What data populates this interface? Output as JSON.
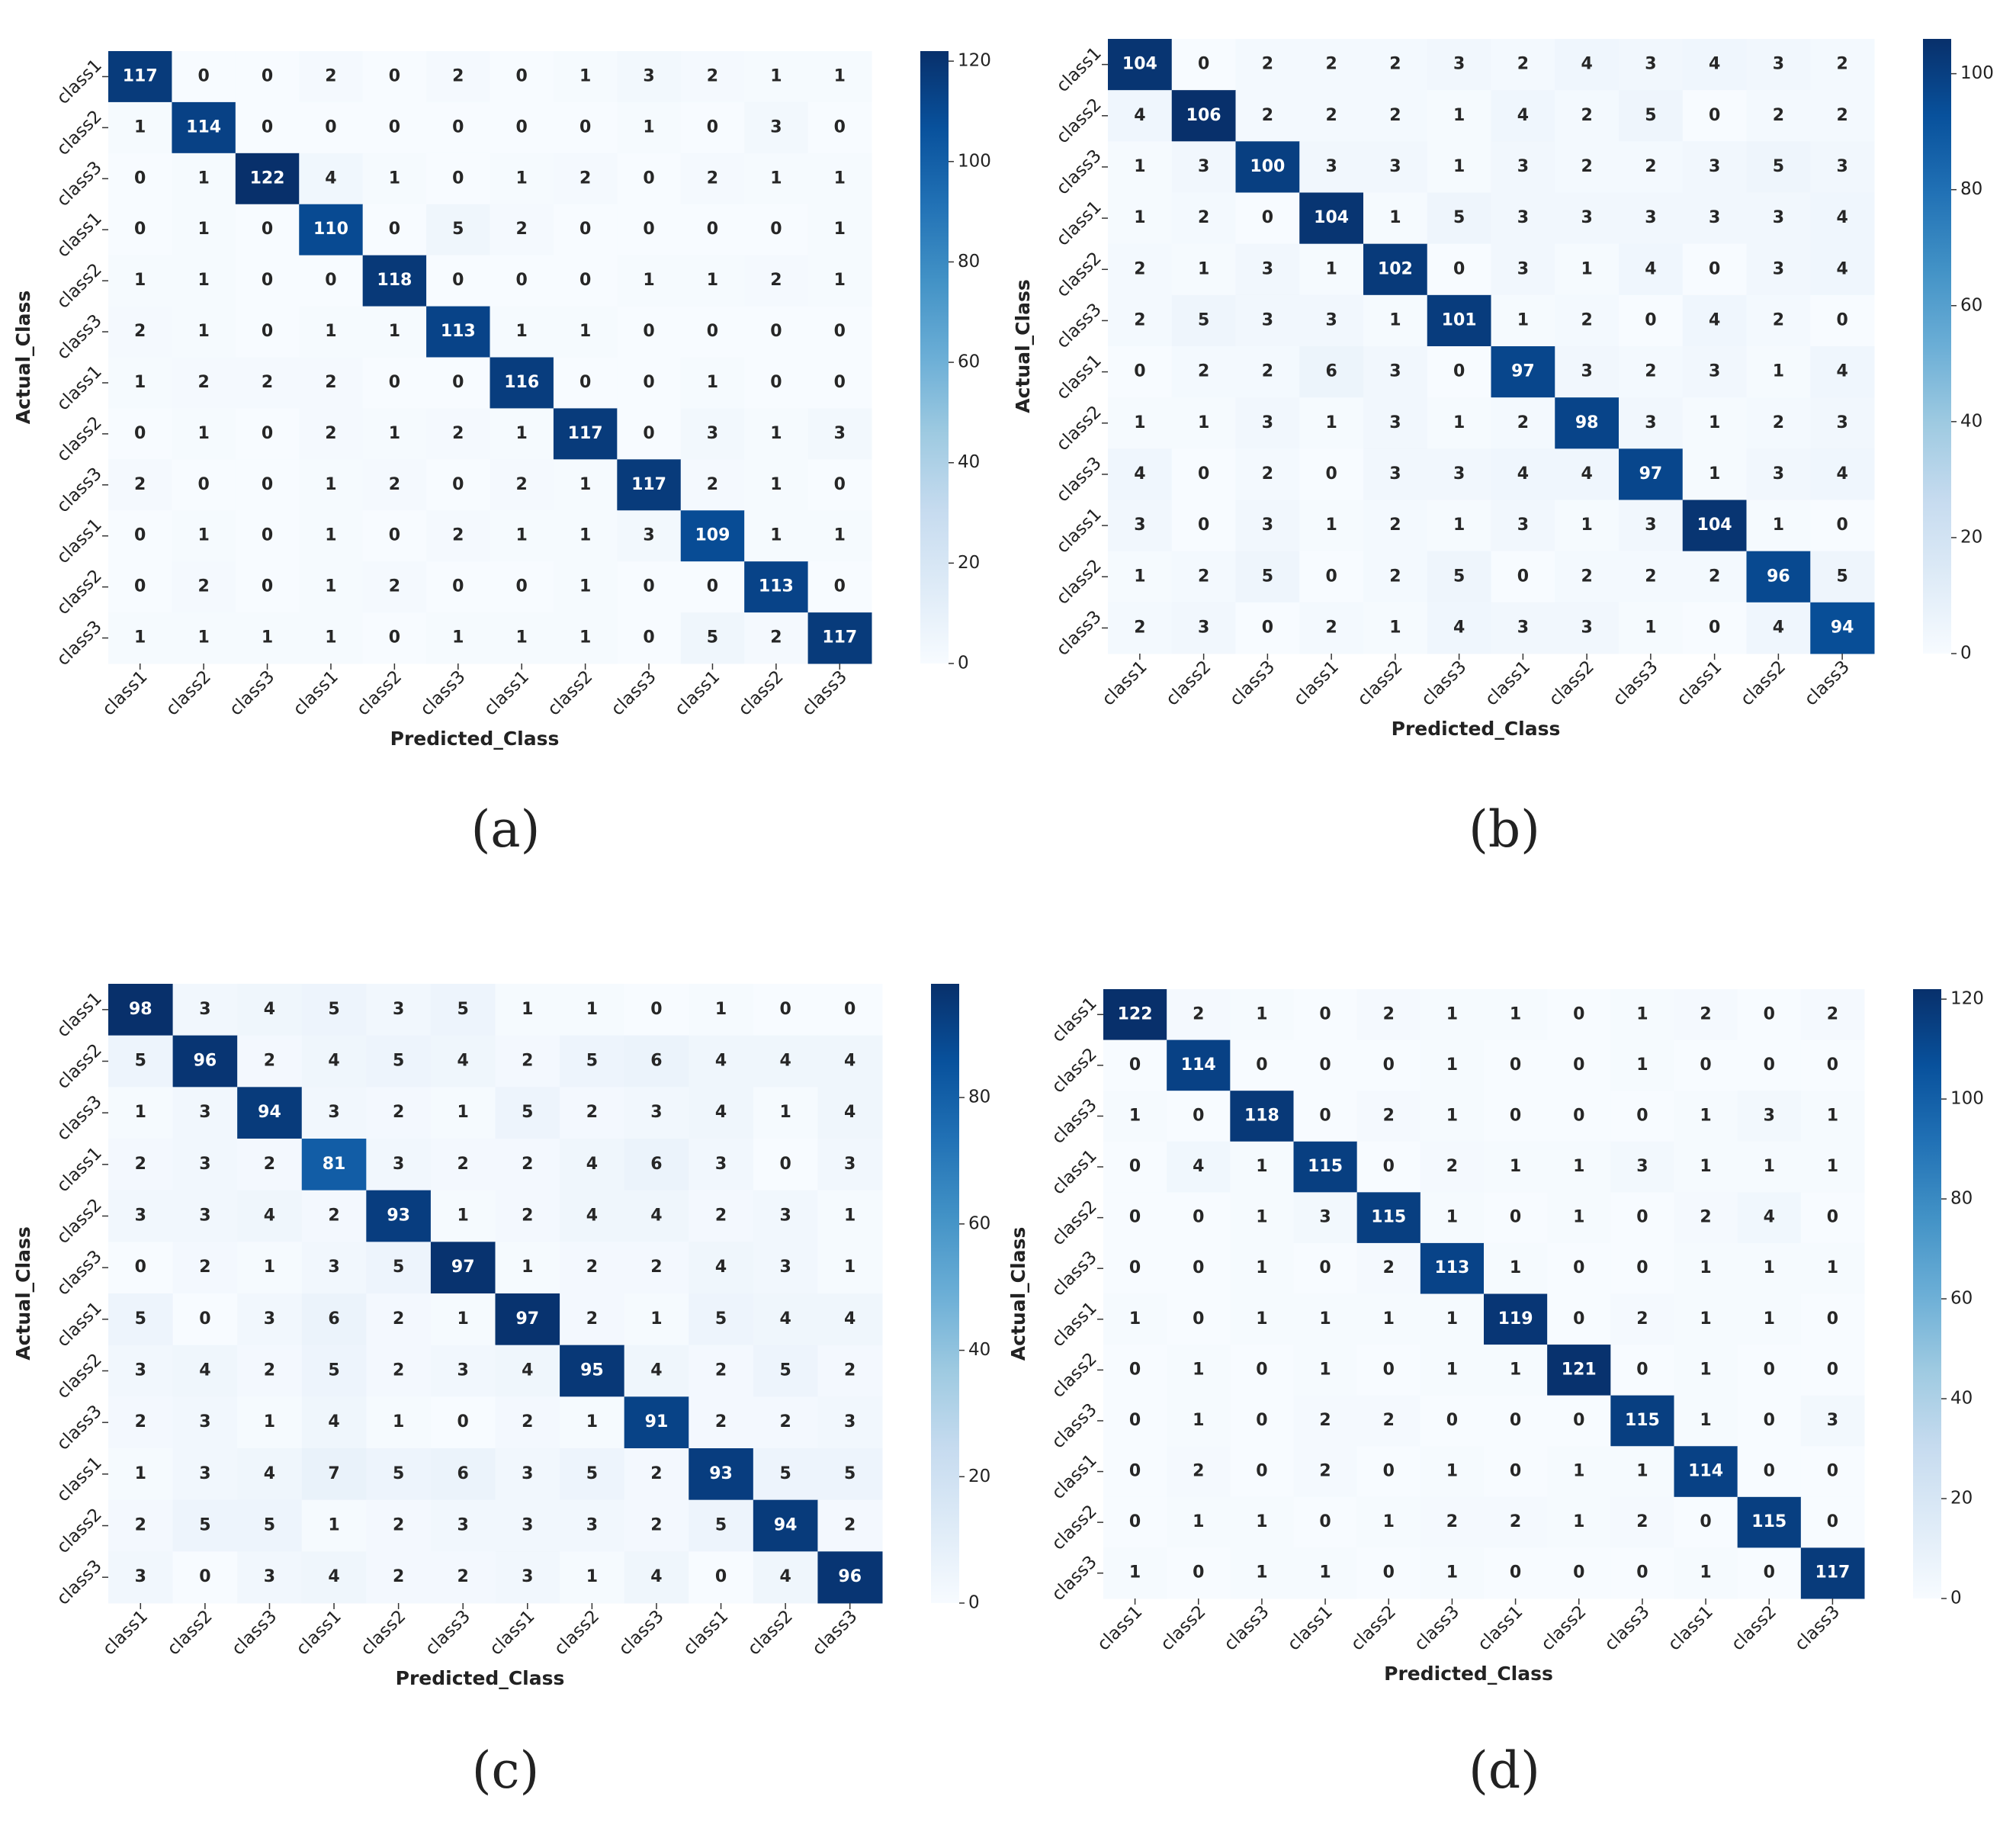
{
  "chart_data": [
    {
      "type": "heatmap",
      "caption": "(a)",
      "x_label": "Predicted_Class",
      "y_label": "Actual_Class",
      "colormap": "Blues",
      "x_categories": [
        "class1",
        "class2",
        "class3",
        "class1",
        "class2",
        "class3",
        "class1",
        "class2",
        "class3",
        "class1",
        "class2",
        "class3"
      ],
      "y_categories": [
        "class1",
        "class2",
        "class3",
        "class1",
        "class2",
        "class3",
        "class1",
        "class2",
        "class3",
        "class1",
        "class2",
        "class3"
      ],
      "values": [
        [
          117,
          0,
          0,
          2,
          0,
          2,
          0,
          1,
          3,
          2,
          1,
          1
        ],
        [
          1,
          114,
          0,
          0,
          0,
          0,
          0,
          0,
          1,
          0,
          3,
          0
        ],
        [
          0,
          1,
          122,
          4,
          1,
          0,
          1,
          2,
          0,
          2,
          1,
          1
        ],
        [
          0,
          1,
          0,
          110,
          0,
          5,
          2,
          0,
          0,
          0,
          0,
          1
        ],
        [
          1,
          1,
          0,
          0,
          118,
          0,
          0,
          0,
          1,
          1,
          2,
          1
        ],
        [
          2,
          1,
          0,
          1,
          1,
          113,
          1,
          1,
          0,
          0,
          0,
          0
        ],
        [
          1,
          2,
          2,
          2,
          0,
          0,
          116,
          0,
          0,
          1,
          0,
          0
        ],
        [
          0,
          1,
          0,
          2,
          1,
          2,
          1,
          117,
          0,
          3,
          1,
          3
        ],
        [
          2,
          0,
          0,
          1,
          2,
          0,
          2,
          1,
          117,
          2,
          1,
          0
        ],
        [
          0,
          1,
          0,
          1,
          0,
          2,
          1,
          1,
          3,
          109,
          1,
          1
        ],
        [
          0,
          2,
          0,
          1,
          2,
          0,
          0,
          1,
          0,
          0,
          113,
          0
        ],
        [
          1,
          1,
          1,
          1,
          0,
          1,
          1,
          1,
          0,
          5,
          2,
          117
        ]
      ],
      "zlim": [
        0,
        122
      ],
      "zticks": [
        0,
        20,
        40,
        60,
        80,
        100,
        120
      ]
    },
    {
      "type": "heatmap",
      "caption": "(b)",
      "x_label": "Predicted_Class",
      "y_label": "Actual_Class",
      "colormap": "Blues",
      "x_categories": [
        "class1",
        "class2",
        "class3",
        "class1",
        "class2",
        "class3",
        "class1",
        "class2",
        "class3",
        "class1",
        "class2",
        "class3"
      ],
      "y_categories": [
        "class1",
        "class2",
        "class3",
        "class1",
        "class2",
        "class3",
        "class1",
        "class2",
        "class3",
        "class1",
        "class2",
        "class3"
      ],
      "values": [
        [
          104,
          0,
          2,
          2,
          2,
          3,
          2,
          4,
          3,
          4,
          3,
          2
        ],
        [
          4,
          106,
          2,
          2,
          2,
          1,
          4,
          2,
          5,
          0,
          2,
          2
        ],
        [
          1,
          3,
          100,
          3,
          3,
          1,
          3,
          2,
          2,
          3,
          5,
          3
        ],
        [
          1,
          2,
          0,
          104,
          1,
          5,
          3,
          3,
          3,
          3,
          3,
          4
        ],
        [
          2,
          1,
          3,
          1,
          102,
          0,
          3,
          1,
          4,
          0,
          3,
          4
        ],
        [
          2,
          5,
          3,
          3,
          1,
          101,
          1,
          2,
          0,
          4,
          2,
          0
        ],
        [
          0,
          2,
          2,
          6,
          3,
          0,
          97,
          3,
          2,
          3,
          1,
          4
        ],
        [
          1,
          1,
          3,
          1,
          3,
          1,
          2,
          98,
          3,
          1,
          2,
          3
        ],
        [
          4,
          0,
          2,
          0,
          3,
          3,
          4,
          4,
          97,
          1,
          3,
          4
        ],
        [
          3,
          0,
          3,
          1,
          2,
          1,
          3,
          1,
          3,
          104,
          1,
          0
        ],
        [
          1,
          2,
          5,
          0,
          2,
          5,
          0,
          2,
          2,
          2,
          96,
          5
        ],
        [
          2,
          3,
          0,
          2,
          1,
          4,
          3,
          3,
          1,
          0,
          4,
          94
        ]
      ],
      "zlim": [
        0,
        106
      ],
      "zticks": [
        0,
        20,
        40,
        60,
        80,
        100
      ]
    },
    {
      "type": "heatmap",
      "caption": "(c)",
      "x_label": "Predicted_Class",
      "y_label": "Actual_Class",
      "colormap": "Blues",
      "x_categories": [
        "class1",
        "class2",
        "class3",
        "class1",
        "class2",
        "class3",
        "class1",
        "class2",
        "class3",
        "class1",
        "class2",
        "class3"
      ],
      "y_categories": [
        "class1",
        "class2",
        "class3",
        "class1",
        "class2",
        "class3",
        "class1",
        "class2",
        "class3",
        "class1",
        "class2",
        "class3"
      ],
      "values": [
        [
          98,
          3,
          4,
          5,
          3,
          5,
          1,
          1,
          0,
          1,
          0,
          0
        ],
        [
          5,
          96,
          2,
          4,
          5,
          4,
          2,
          5,
          6,
          4,
          4,
          4
        ],
        [
          1,
          3,
          94,
          3,
          2,
          1,
          5,
          2,
          3,
          4,
          1,
          4
        ],
        [
          2,
          3,
          2,
          81,
          3,
          2,
          2,
          4,
          6,
          3,
          0,
          3
        ],
        [
          3,
          3,
          4,
          2,
          93,
          1,
          2,
          4,
          4,
          2,
          3,
          1
        ],
        [
          0,
          2,
          1,
          3,
          5,
          97,
          1,
          2,
          2,
          4,
          3,
          1
        ],
        [
          5,
          0,
          3,
          6,
          2,
          1,
          97,
          2,
          1,
          5,
          4,
          4
        ],
        [
          3,
          4,
          2,
          5,
          2,
          3,
          4,
          95,
          4,
          2,
          5,
          2
        ],
        [
          2,
          3,
          1,
          4,
          1,
          0,
          2,
          1,
          91,
          2,
          2,
          3
        ],
        [
          1,
          3,
          4,
          7,
          5,
          6,
          3,
          5,
          2,
          93,
          5,
          5
        ],
        [
          2,
          5,
          5,
          1,
          2,
          3,
          3,
          3,
          2,
          5,
          94,
          2
        ],
        [
          3,
          0,
          3,
          4,
          2,
          2,
          3,
          1,
          4,
          0,
          4,
          96
        ]
      ],
      "zlim": [
        0,
        98
      ],
      "zticks": [
        0,
        20,
        40,
        60,
        80
      ]
    },
    {
      "type": "heatmap",
      "caption": "(d)",
      "x_label": "Predicted_Class",
      "y_label": "Actual_Class",
      "colormap": "Blues",
      "x_categories": [
        "class1",
        "class2",
        "class3",
        "class1",
        "class2",
        "class3",
        "class1",
        "class2",
        "class3",
        "class1",
        "class2",
        "class3"
      ],
      "y_categories": [
        "class1",
        "class2",
        "class3",
        "class1",
        "class2",
        "class3",
        "class1",
        "class2",
        "class3",
        "class1",
        "class2",
        "class3"
      ],
      "values": [
        [
          122,
          2,
          1,
          0,
          2,
          1,
          1,
          0,
          1,
          2,
          0,
          2
        ],
        [
          0,
          114,
          0,
          0,
          0,
          1,
          0,
          0,
          1,
          0,
          0,
          0
        ],
        [
          1,
          0,
          118,
          0,
          2,
          1,
          0,
          0,
          0,
          1,
          3,
          1
        ],
        [
          0,
          4,
          1,
          115,
          0,
          2,
          1,
          1,
          3,
          1,
          1,
          1
        ],
        [
          0,
          0,
          1,
          3,
          115,
          1,
          0,
          1,
          0,
          2,
          4,
          0
        ],
        [
          0,
          0,
          1,
          0,
          2,
          113,
          1,
          0,
          0,
          1,
          1,
          1
        ],
        [
          1,
          0,
          1,
          1,
          1,
          1,
          119,
          0,
          2,
          1,
          1,
          0
        ],
        [
          0,
          1,
          0,
          1,
          0,
          1,
          1,
          121,
          0,
          1,
          0,
          0
        ],
        [
          0,
          1,
          0,
          2,
          2,
          0,
          0,
          0,
          115,
          1,
          0,
          3
        ],
        [
          0,
          2,
          0,
          2,
          0,
          1,
          0,
          1,
          1,
          114,
          0,
          0
        ],
        [
          0,
          1,
          1,
          0,
          1,
          2,
          2,
          1,
          2,
          0,
          115,
          0
        ],
        [
          1,
          0,
          1,
          1,
          0,
          1,
          0,
          0,
          0,
          1,
          0,
          117
        ]
      ],
      "zlim": [
        0,
        122
      ],
      "zticks": [
        0,
        20,
        40,
        60,
        80,
        100,
        120
      ]
    }
  ]
}
